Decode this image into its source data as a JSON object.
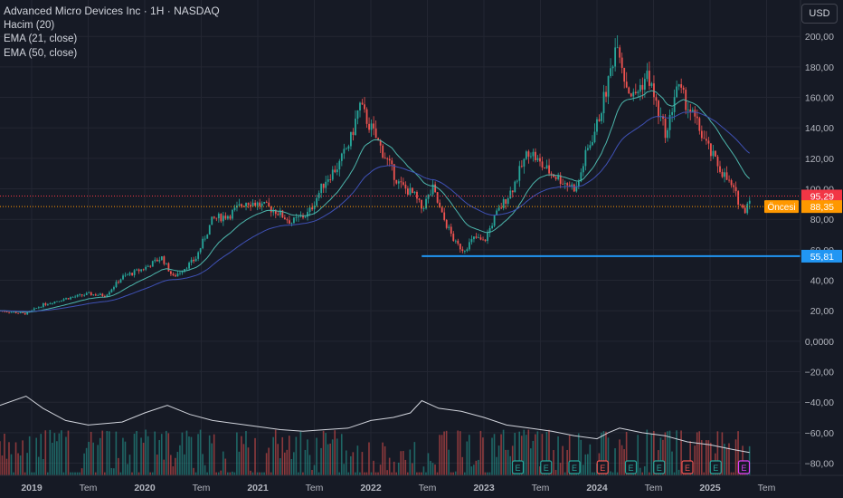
{
  "header": {
    "title": "Advanced Micro Devices Inc · 1H · NASDAQ",
    "indicators": [
      "Hacim (20)",
      "EMA (21, close)",
      "EMA (50, close)"
    ],
    "currency_button": "USD"
  },
  "colors": {
    "background": "#161a25",
    "up": "#26a69a",
    "down": "#ef5350",
    "ema21": "#4db6ac",
    "ema50": "#3f51b5",
    "support_line": "#2196f3",
    "price_label_red": "#f23645",
    "price_label_orange": "#ff9800",
    "volume_ma": "#d1d4dc"
  },
  "chart_data": {
    "type": "candlestick",
    "title": "Advanced Micro Devices Inc · 1H · NASDAQ",
    "y_ticks": [
      "200,00",
      "180,00",
      "160,00",
      "140,00",
      "120,00",
      "100,00",
      "80,00",
      "60,00",
      "40,00",
      "20,00",
      "0,0000",
      "−20,00",
      "−40,00",
      "−60,00",
      "−80,00"
    ],
    "y_tick_values": [
      200,
      180,
      160,
      140,
      120,
      100,
      80,
      60,
      40,
      20,
      0,
      -20,
      -40,
      -60,
      -80
    ],
    "x_ticks": [
      {
        "label": "2019",
        "t": 2019.0
      },
      {
        "label": "Tem",
        "t": 2019.5
      },
      {
        "label": "2020",
        "t": 2020.0
      },
      {
        "label": "Tem",
        "t": 2020.5
      },
      {
        "label": "2021",
        "t": 2021.0
      },
      {
        "label": "Tem",
        "t": 2021.5
      },
      {
        "label": "2022",
        "t": 2022.0
      },
      {
        "label": "Tem",
        "t": 2022.5
      },
      {
        "label": "2023",
        "t": 2023.0
      },
      {
        "label": "Tem",
        "t": 2023.5
      },
      {
        "label": "2024",
        "t": 2024.0
      },
      {
        "label": "Tem",
        "t": 2024.5
      },
      {
        "label": "2025",
        "t": 2025.0
      },
      {
        "label": "Tem",
        "t": 2025.5
      }
    ],
    "ylim": [
      -88,
      212
    ],
    "xlim": [
      2018.72,
      2025.8
    ],
    "price_path": [
      [
        2018.72,
        20
      ],
      [
        2018.95,
        18
      ],
      [
        2019.1,
        24
      ],
      [
        2019.3,
        28
      ],
      [
        2019.5,
        31
      ],
      [
        2019.65,
        30
      ],
      [
        2019.8,
        42
      ],
      [
        2020.0,
        48
      ],
      [
        2020.15,
        55
      ],
      [
        2020.25,
        42
      ],
      [
        2020.45,
        54
      ],
      [
        2020.6,
        80
      ],
      [
        2020.75,
        83
      ],
      [
        2020.9,
        92
      ],
      [
        2021.0,
        90
      ],
      [
        2021.15,
        86
      ],
      [
        2021.3,
        78
      ],
      [
        2021.45,
        84
      ],
      [
        2021.6,
        106
      ],
      [
        2021.72,
        116
      ],
      [
        2021.82,
        132
      ],
      [
        2021.9,
        155
      ],
      [
        2022.0,
        140
      ],
      [
        2022.12,
        122
      ],
      [
        2022.25,
        103
      ],
      [
        2022.38,
        96
      ],
      [
        2022.45,
        87
      ],
      [
        2022.55,
        100
      ],
      [
        2022.62,
        84
      ],
      [
        2022.75,
        64
      ],
      [
        2022.82,
        60
      ],
      [
        2022.92,
        68
      ],
      [
        2023.0,
        65
      ],
      [
        2023.1,
        82
      ],
      [
        2023.25,
        100
      ],
      [
        2023.4,
        126
      ],
      [
        2023.5,
        116
      ],
      [
        2023.6,
        110
      ],
      [
        2023.72,
        104
      ],
      [
        2023.82,
        100
      ],
      [
        2023.9,
        122
      ],
      [
        2024.0,
        142
      ],
      [
        2024.1,
        170
      ],
      [
        2024.18,
        200
      ],
      [
        2024.25,
        170
      ],
      [
        2024.32,
        160
      ],
      [
        2024.45,
        175
      ],
      [
        2024.55,
        148
      ],
      [
        2024.62,
        135
      ],
      [
        2024.7,
        168
      ],
      [
        2024.8,
        155
      ],
      [
        2024.9,
        140
      ],
      [
        2025.0,
        124
      ],
      [
        2025.1,
        112
      ],
      [
        2025.2,
        100
      ],
      [
        2025.3,
        85
      ],
      [
        2025.35,
        95
      ]
    ],
    "volume_ma_path": [
      [
        2018.72,
        -42
      ],
      [
        2018.95,
        -36
      ],
      [
        2019.1,
        -44
      ],
      [
        2019.3,
        -52
      ],
      [
        2019.5,
        -55
      ],
      [
        2019.8,
        -53
      ],
      [
        2020.0,
        -47
      ],
      [
        2020.2,
        -42
      ],
      [
        2020.4,
        -48
      ],
      [
        2020.6,
        -52
      ],
      [
        2020.8,
        -54
      ],
      [
        2021.0,
        -56
      ],
      [
        2021.2,
        -58
      ],
      [
        2021.4,
        -59
      ],
      [
        2021.6,
        -58
      ],
      [
        2021.8,
        -57
      ],
      [
        2022.0,
        -52
      ],
      [
        2022.2,
        -50
      ],
      [
        2022.35,
        -47
      ],
      [
        2022.45,
        -39
      ],
      [
        2022.6,
        -44
      ],
      [
        2022.8,
        -46
      ],
      [
        2023.0,
        -50
      ],
      [
        2023.2,
        -55
      ],
      [
        2023.4,
        -57
      ],
      [
        2023.6,
        -59
      ],
      [
        2023.8,
        -62
      ],
      [
        2024.0,
        -64
      ],
      [
        2024.1,
        -60
      ],
      [
        2024.2,
        -57
      ],
      [
        2024.4,
        -60
      ],
      [
        2024.6,
        -62
      ],
      [
        2024.8,
        -66
      ],
      [
        2025.0,
        -68
      ],
      [
        2025.2,
        -71
      ],
      [
        2025.35,
        -73
      ]
    ],
    "support_level": 55.81,
    "support_start": 2022.45,
    "last_price": 95.29,
    "pre_market_price": 88.35,
    "pre_market_label": "Öncesi",
    "earnings_markers": [
      {
        "t": 2023.3,
        "sym": "E",
        "color": "#26a69a"
      },
      {
        "t": 2023.55,
        "sym": "E",
        "color": "#26a69a"
      },
      {
        "t": 2023.8,
        "sym": "E",
        "color": "#26a69a"
      },
      {
        "t": 2024.05,
        "sym": "E",
        "color": "#ef5350"
      },
      {
        "t": 2024.3,
        "sym": "E",
        "color": "#26a69a"
      },
      {
        "t": 2024.55,
        "sym": "E",
        "color": "#26a69a"
      },
      {
        "t": 2024.8,
        "sym": "E",
        "color": "#ef5350"
      },
      {
        "t": 2025.05,
        "sym": "E",
        "color": "#26a69a"
      },
      {
        "t": 2025.3,
        "sym": "E",
        "color": "#e040fb"
      }
    ],
    "legend": [
      "Hacim (20)",
      "EMA (21, close)",
      "EMA (50, close)"
    ],
    "grid": true
  }
}
